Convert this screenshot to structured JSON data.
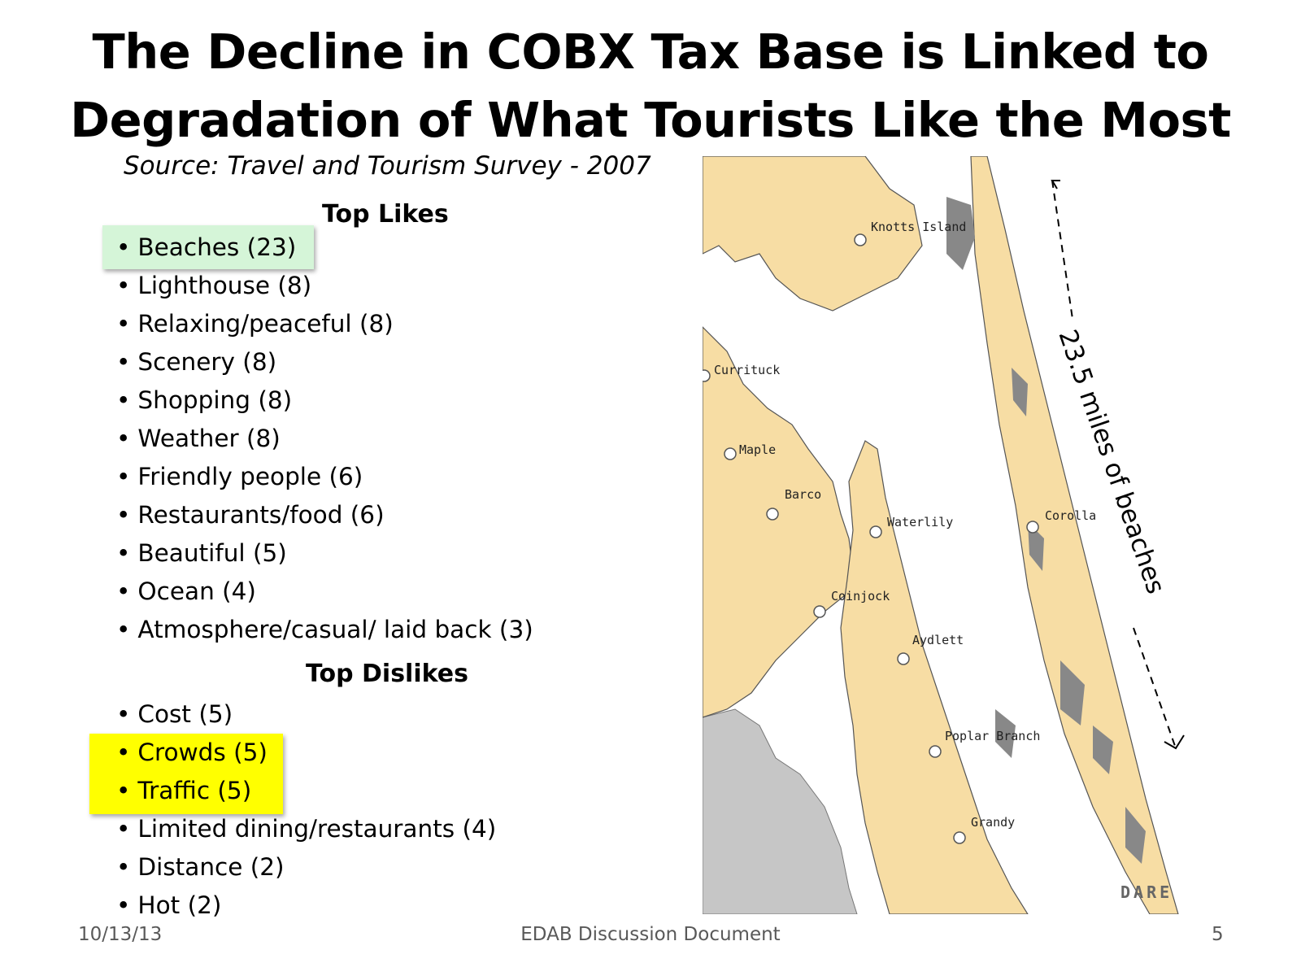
{
  "title": {
    "line1": "The Decline in COBX Tax Base is Linked to",
    "line2": "Degradation of What Tourists Like the Most"
  },
  "source": "Source: Travel and Tourism Survey - 2007",
  "likes": {
    "heading": "Top Likes",
    "items": [
      "Beaches (23)",
      "Lighthouse (8)",
      "Relaxing/peaceful (8)",
      "Scenery (8)",
      "Shopping (8)",
      "Weather (8)",
      "Friendly people (6)",
      "Restaurants/food (6)",
      "Beautiful (5)",
      "Ocean (4)",
      "Atmosphere/casual/ laid back (3)"
    ]
  },
  "dislikes": {
    "heading": "Top Dislikes",
    "items": [
      "Cost (5)",
      "Crowds (5)",
      "Traffic (5)",
      "Limited dining/restaurants (4)",
      "Distance (2)",
      "Hot (2)"
    ]
  },
  "map": {
    "places": [
      "Knotts Island",
      "Currituck",
      "Maple",
      "Barco",
      "Waterlily",
      "Corolla",
      "Coinjock",
      "Aydlett",
      "Poplar Branch",
      "Grandy"
    ],
    "county_label": "DARE",
    "distance_label": "23.5 miles of beaches",
    "colors": {
      "land": "#f7dda4",
      "water": "#ffffff",
      "outline": "#555555",
      "adjacent_land": "#c6c6c6"
    }
  },
  "highlights": {
    "green": "#d5f5d8",
    "yellow": "#ffff00"
  },
  "footer": {
    "date": "10/13/13",
    "center": "EDAB Discussion Document",
    "page": "5"
  }
}
